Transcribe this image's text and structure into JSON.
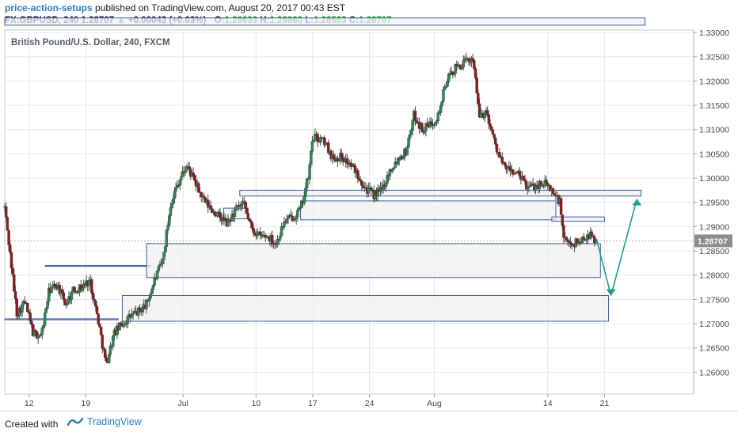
{
  "header": {
    "publisher": "price-action-setups",
    "published_text": "published on TradingView.com, August 20, 2017 00:43 EST",
    "symbol_line": "FX:GBPUSD, 240  1.28707",
    "change": "+0.00043 (+0.03%)",
    "o_label": "O:",
    "o_value": "1.28633",
    "h_label": "H:",
    "h_value": "1.28860",
    "l_label": "L:",
    "l_value": "1.28563",
    "c_label": "C:",
    "c_value": "1.28707"
  },
  "chart_data": {
    "type": "candlestick",
    "title": "British Pound/U.S. Dollar, 240, FXCM",
    "ylim": [
      1.2555,
      1.3305
    ],
    "y_ticks": [
      "1.33000",
      "1.32500",
      "1.32000",
      "1.31500",
      "1.31000",
      "1.30500",
      "1.30000",
      "1.29500",
      "1.29000",
      "1.28500",
      "1.28000",
      "1.27500",
      "1.27000",
      "1.26500",
      "1.26000"
    ],
    "x_ticks": [
      {
        "label": "12",
        "day": 12
      },
      {
        "label": "19",
        "day": 19
      },
      {
        "label": "Jul",
        "day": 31
      },
      {
        "label": "10",
        "day": 40
      },
      {
        "label": "17",
        "day": 47
      },
      {
        "label": "24",
        "day": 54
      },
      {
        "label": "Aug",
        "day": 62
      },
      {
        "label": "14",
        "day": 76
      },
      {
        "label": "21",
        "day": 83
      }
    ],
    "x_range_days": [
      9,
      94
    ],
    "last_price": {
      "value": 1.28707,
      "label": "1.28707"
    },
    "zones": [
      {
        "from_day": 9.0,
        "to_day": 88.0,
        "low": 1.3315,
        "high": 1.333
      },
      {
        "from_day": 14.0,
        "to_day": 27.0,
        "low": 1.2818,
        "high": 1.282
      },
      {
        "from_day": 9.0,
        "to_day": 23.0,
        "low": 1.2708,
        "high": 1.271
      },
      {
        "from_day": 26.5,
        "to_day": 82.5,
        "low": 1.2795,
        "high": 1.2865
      },
      {
        "from_day": 23.5,
        "to_day": 83.5,
        "low": 1.2705,
        "high": 1.2758
      },
      {
        "from_day": 38.0,
        "to_day": 87.5,
        "low": 1.2963,
        "high": 1.2975
      },
      {
        "from_day": 45.5,
        "to_day": 77.0,
        "low": 1.2914,
        "high": 1.2953
      },
      {
        "from_day": 76.5,
        "to_day": 83.0,
        "low": 1.2911,
        "high": 1.292
      },
      {
        "from_day": 36.0,
        "to_day": 39.0,
        "low": 1.2916,
        "high": 1.2938
      }
    ],
    "projection": [
      {
        "day": 82.0,
        "value": 1.2875
      },
      {
        "day": 83.8,
        "value": 1.2758
      },
      {
        "day": 87.0,
        "value": 1.2957
      }
    ],
    "path": [
      {
        "day": 9.0,
        "value": 1.294
      },
      {
        "day": 10.5,
        "value": 1.272
      },
      {
        "day": 11.5,
        "value": 1.2745
      },
      {
        "day": 12.5,
        "value": 1.268
      },
      {
        "day": 13.5,
        "value": 1.2675
      },
      {
        "day": 14.5,
        "value": 1.277
      },
      {
        "day": 15.5,
        "value": 1.278
      },
      {
        "day": 16.5,
        "value": 1.274
      },
      {
        "day": 17.5,
        "value": 1.277
      },
      {
        "day": 18.5,
        "value": 1.2775
      },
      {
        "day": 19.5,
        "value": 1.279
      },
      {
        "day": 20.5,
        "value": 1.271
      },
      {
        "day": 21.5,
        "value": 1.2615
      },
      {
        "day": 22.5,
        "value": 1.268
      },
      {
        "day": 23.5,
        "value": 1.27
      },
      {
        "day": 24.5,
        "value": 1.2715
      },
      {
        "day": 25.5,
        "value": 1.2725
      },
      {
        "day": 26.5,
        "value": 1.274
      },
      {
        "day": 27.5,
        "value": 1.279
      },
      {
        "day": 28.5,
        "value": 1.283
      },
      {
        "day": 29.5,
        "value": 1.295
      },
      {
        "day": 30.5,
        "value": 1.2995
      },
      {
        "day": 31.0,
        "value": 1.301
      },
      {
        "day": 31.5,
        "value": 1.3025
      },
      {
        "day": 32.5,
        "value": 1.299
      },
      {
        "day": 33.5,
        "value": 1.2955
      },
      {
        "day": 34.5,
        "value": 1.2935
      },
      {
        "day": 35.5,
        "value": 1.292
      },
      {
        "day": 36.5,
        "value": 1.2905
      },
      {
        "day": 37.5,
        "value": 1.2935
      },
      {
        "day": 38.5,
        "value": 1.2945
      },
      {
        "day": 39.5,
        "value": 1.2895
      },
      {
        "day": 40.5,
        "value": 1.288
      },
      {
        "day": 41.5,
        "value": 1.288
      },
      {
        "day": 42.5,
        "value": 1.2865
      },
      {
        "day": 43.5,
        "value": 1.291
      },
      {
        "day": 44.5,
        "value": 1.292
      },
      {
        "day": 45.5,
        "value": 1.2935
      },
      {
        "day": 46.5,
        "value": 1.3005
      },
      {
        "day": 47.0,
        "value": 1.3085
      },
      {
        "day": 48.5,
        "value": 1.3075
      },
      {
        "day": 49.5,
        "value": 1.304
      },
      {
        "day": 50.5,
        "value": 1.3045
      },
      {
        "day": 51.5,
        "value": 1.303
      },
      {
        "day": 52.5,
        "value": 1.301
      },
      {
        "day": 53.5,
        "value": 1.298
      },
      {
        "day": 54.5,
        "value": 1.2965
      },
      {
        "day": 55.5,
        "value": 1.2975
      },
      {
        "day": 56.5,
        "value": 1.3015
      },
      {
        "day": 57.5,
        "value": 1.304
      },
      {
        "day": 58.5,
        "value": 1.3055
      },
      {
        "day": 59.5,
        "value": 1.313
      },
      {
        "day": 60.5,
        "value": 1.31
      },
      {
        "day": 61.5,
        "value": 1.311
      },
      {
        "day": 62.5,
        "value": 1.313
      },
      {
        "day": 63.5,
        "value": 1.32
      },
      {
        "day": 64.5,
        "value": 1.3225
      },
      {
        "day": 65.5,
        "value": 1.3235
      },
      {
        "day": 66.5,
        "value": 1.3245
      },
      {
        "day": 66.8,
        "value": 1.325
      },
      {
        "day": 67.5,
        "value": 1.313
      },
      {
        "day": 68.5,
        "value": 1.3135
      },
      {
        "day": 69.5,
        "value": 1.307
      },
      {
        "day": 70.5,
        "value": 1.3025
      },
      {
        "day": 71.5,
        "value": 1.3015
      },
      {
        "day": 72.5,
        "value": 1.3005
      },
      {
        "day": 73.5,
        "value": 1.298
      },
      {
        "day": 74.5,
        "value": 1.2985
      },
      {
        "day": 75.5,
        "value": 1.299
      },
      {
        "day": 76.5,
        "value": 1.2975
      },
      {
        "day": 77.5,
        "value": 1.295
      },
      {
        "day": 78.0,
        "value": 1.287
      },
      {
        "day": 79.0,
        "value": 1.2865
      },
      {
        "day": 80.0,
        "value": 1.287
      },
      {
        "day": 81.0,
        "value": 1.2885
      },
      {
        "day": 82.0,
        "value": 1.287
      }
    ]
  },
  "footer": {
    "created_with": "Created with",
    "brand": "TradingView"
  },
  "colors": {
    "bull": "#2e8b57",
    "bear": "#8b1a1a",
    "zone_stroke": "#3d5a9e",
    "zone_fill": "#f0f0f2",
    "arrow": "#1f9e8a",
    "grid": "#e6e6e6",
    "price_tag": "#8c8c8c"
  }
}
